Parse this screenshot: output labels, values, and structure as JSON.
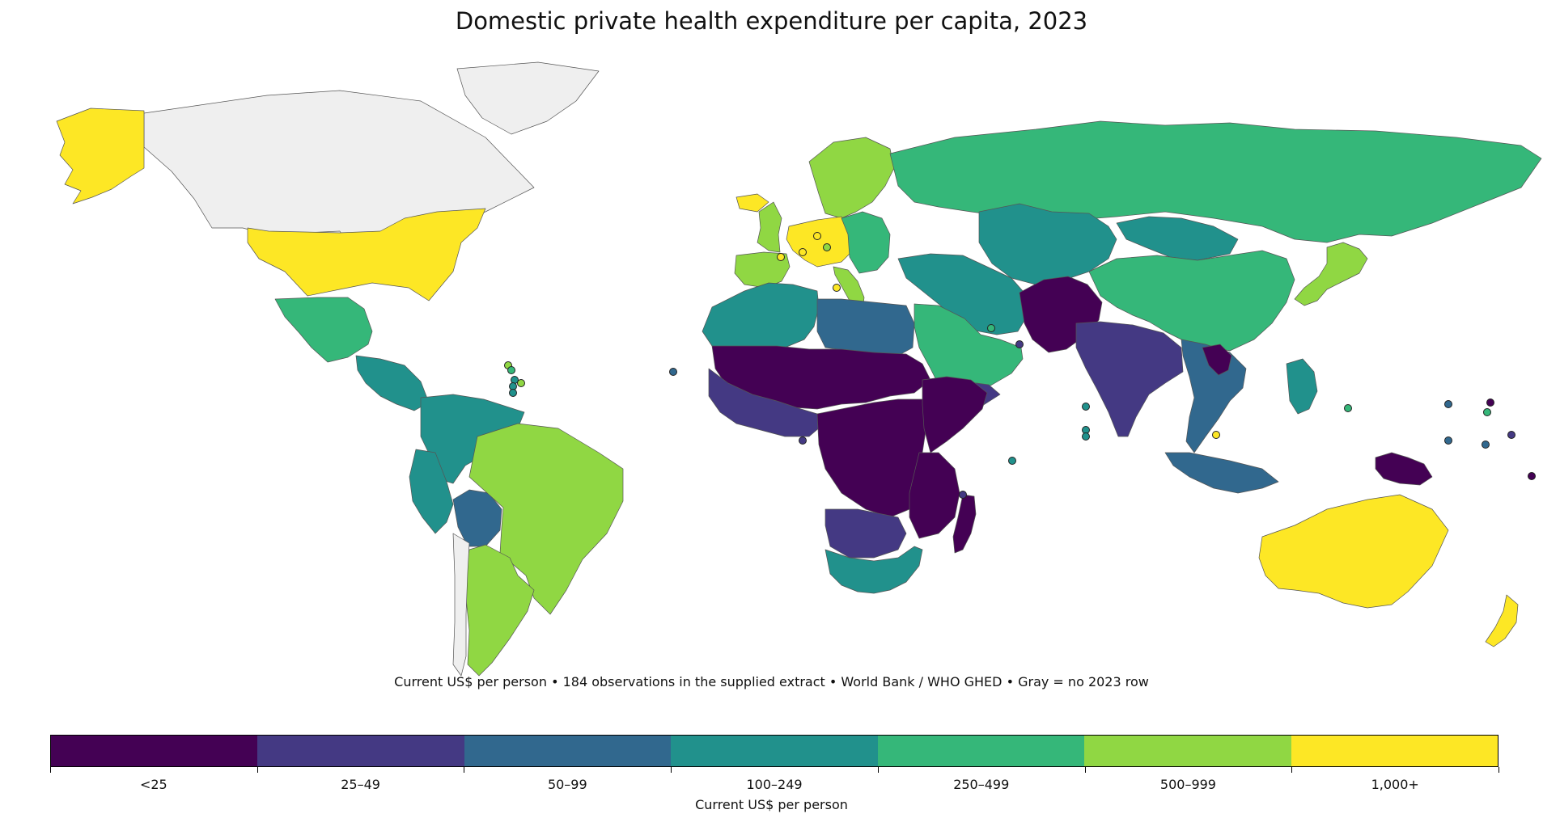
{
  "title": "Domestic private health expenditure per capita, 2023",
  "subtitle": "Current US$ per person • 184 observations in the supplied extract • World Bank / WHO GHED • Gray = no 2023 row",
  "legend": {
    "axis_label": "Current US$ per person",
    "no_data_color": "#efefef",
    "bins": [
      {
        "label": "<25",
        "color": "#440154"
      },
      {
        "label": "25–49",
        "color": "#443983"
      },
      {
        "label": "50–99",
        "color": "#31688e"
      },
      {
        "label": "100–249",
        "color": "#21918c"
      },
      {
        "label": "250–499",
        "color": "#35b779"
      },
      {
        "label": "500–999",
        "color": "#90d743"
      },
      {
        "label": "1,000+",
        "color": "#fde725"
      }
    ]
  },
  "regions": [
    {
      "name": "Canada",
      "bin": -1
    },
    {
      "name": "Greenland",
      "bin": -1
    },
    {
      "name": "United States",
      "bin": 6
    },
    {
      "name": "Alaska",
      "bin": 6
    },
    {
      "name": "Mexico",
      "bin": 4
    },
    {
      "name": "Central America",
      "bin": 3
    },
    {
      "name": "Colombia / Venezuela",
      "bin": 3
    },
    {
      "name": "Peru / Ecuador",
      "bin": 3
    },
    {
      "name": "Bolivia",
      "bin": 2
    },
    {
      "name": "Brazil",
      "bin": 5
    },
    {
      "name": "Argentina",
      "bin": 5
    },
    {
      "name": "Chile",
      "bin": -1
    },
    {
      "name": "Iceland",
      "bin": 6
    },
    {
      "name": "Norway / Sweden / Finland",
      "bin": 5
    },
    {
      "name": "United Kingdom",
      "bin": 5
    },
    {
      "name": "Western Europe",
      "bin": 6
    },
    {
      "name": "Spain / Portugal",
      "bin": 5
    },
    {
      "name": "Italy",
      "bin": 5
    },
    {
      "name": "Eastern Europe",
      "bin": 4
    },
    {
      "name": "Russia",
      "bin": 4
    },
    {
      "name": "Kazakhstan / Central Asia",
      "bin": 3
    },
    {
      "name": "Mongolia",
      "bin": 3
    },
    {
      "name": "China",
      "bin": 4
    },
    {
      "name": "Japan",
      "bin": 5
    },
    {
      "name": "Turkey / Iran",
      "bin": 3
    },
    {
      "name": "Arabian Peninsula",
      "bin": 4
    },
    {
      "name": "Yemen",
      "bin": 1
    },
    {
      "name": "Afghanistan / Pakistan",
      "bin": 0
    },
    {
      "name": "India",
      "bin": 1
    },
    {
      "name": "Southeast Asia",
      "bin": 2
    },
    {
      "name": "Laos",
      "bin": 0
    },
    {
      "name": "Indonesia",
      "bin": 2
    },
    {
      "name": "Philippines",
      "bin": 3
    },
    {
      "name": "Papua New Guinea",
      "bin": 0
    },
    {
      "name": "Australia",
      "bin": 6
    },
    {
      "name": "New Zealand",
      "bin": 6
    },
    {
      "name": "North Africa West",
      "bin": 3
    },
    {
      "name": "Libya / Egypt",
      "bin": 2
    },
    {
      "name": "Sahel",
      "bin": 0
    },
    {
      "name": "West Africa",
      "bin": 1
    },
    {
      "name": "Central Africa",
      "bin": 0
    },
    {
      "name": "Horn of Africa",
      "bin": 0
    },
    {
      "name": "East Africa",
      "bin": 0
    },
    {
      "name": "Angola / Zambia",
      "bin": 1
    },
    {
      "name": "Southern Africa",
      "bin": 3
    },
    {
      "name": "Madagascar",
      "bin": 0
    }
  ],
  "markers": [
    {
      "bin": 2
    },
    {
      "bin": 1
    },
    {
      "bin": 1
    },
    {
      "bin": 5
    },
    {
      "bin": 4
    },
    {
      "bin": 3
    },
    {
      "bin": 3
    },
    {
      "bin": 5
    },
    {
      "bin": 3
    },
    {
      "bin": 3
    },
    {
      "bin": 1
    },
    {
      "bin": 3
    },
    {
      "bin": 3
    },
    {
      "bin": 2
    },
    {
      "bin": 4
    },
    {
      "bin": 4
    },
    {
      "bin": 6
    },
    {
      "bin": 4
    },
    {
      "bin": 2
    },
    {
      "bin": 0
    },
    {
      "bin": 1
    },
    {
      "bin": 2
    },
    {
      "bin": 0
    },
    {
      "bin": 6
    },
    {
      "bin": 6
    },
    {
      "bin": 5
    },
    {
      "bin": 6
    },
    {
      "bin": 6
    },
    {
      "bin": 3
    }
  ]
}
